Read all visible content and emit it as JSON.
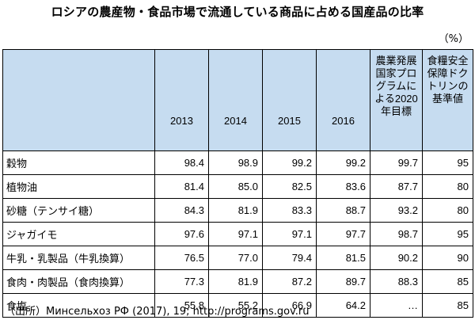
{
  "title": "ロシアの農産物・食品市場で流通している商品に占める国産品の比率",
  "unit": "（%）",
  "table": {
    "headers": [
      "",
      "2013",
      "2014",
      "2015",
      "2016",
      "農業発展国家プログラムによる2020年目標",
      "食糧安全保障ドクトリンの基準値"
    ],
    "rows": [
      {
        "label": "穀物",
        "values": [
          "98.4",
          "98.9",
          "99.2",
          "99.2",
          "99.7",
          "95"
        ]
      },
      {
        "label": "植物油",
        "values": [
          "81.4",
          "85.0",
          "82.5",
          "83.6",
          "87.7",
          "80"
        ]
      },
      {
        "label": "砂糖（テンサイ糖）",
        "values": [
          "84.3",
          "81.9",
          "83.3",
          "88.7",
          "93.2",
          "80"
        ]
      },
      {
        "label": "ジャガイモ",
        "values": [
          "97.6",
          "97.1",
          "97.1",
          "97.7",
          "98.7",
          "95"
        ]
      },
      {
        "label": "牛乳・乳製品（牛乳換算）",
        "values": [
          "76.5",
          "77.0",
          "79.4",
          "81.5",
          "90.2",
          "90"
        ]
      },
      {
        "label": "食肉・肉製品（食肉換算）",
        "values": [
          "77.3",
          "81.9",
          "87.2",
          "89.7",
          "88.3",
          "85"
        ]
      },
      {
        "label": "食塩",
        "values": [
          "55.8",
          "55.2",
          "66.9",
          "64.2",
          "…",
          "85"
        ]
      }
    ]
  },
  "source": "（出所）Минсельхоз РФ (2017), 19; http://programs.gov.ru"
}
